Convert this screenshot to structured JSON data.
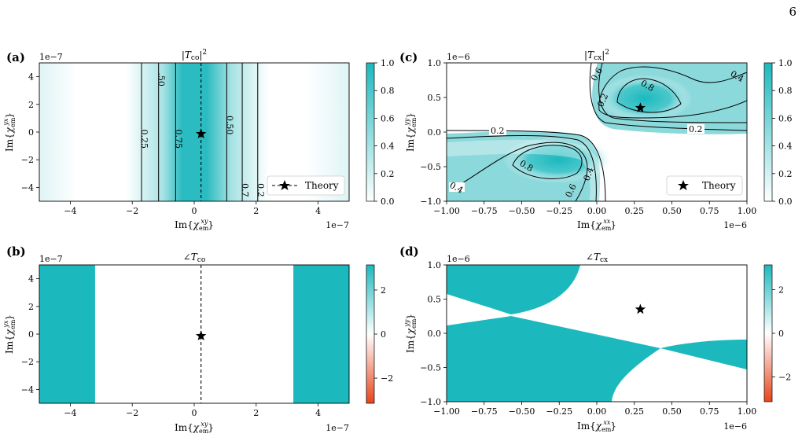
{
  "page_number": "6",
  "colors": {
    "teal": "#1bb9be",
    "white": "#ffffff",
    "red": "#e8441a"
  },
  "chart_data": [
    {
      "panel": "(a)",
      "type": "heatmap",
      "title": "|T_co|²",
      "xlabel": "Im{χ_em^xy}",
      "ylabel": "Im{χ_em^yx}",
      "x_offset": "1e−7",
      "y_offset": "1e−7",
      "xlim": [
        -5,
        5
      ],
      "ylim": [
        -5,
        5
      ],
      "x_ticks": [
        "−4",
        "−2",
        "0",
        "2",
        "4"
      ],
      "y_ticks": [
        "−4",
        "−2",
        "0",
        "2",
        "4"
      ],
      "x_tick_values": [
        -4,
        -2,
        0,
        2,
        4
      ],
      "y_tick_values": [
        -4,
        -2,
        0,
        2,
        4
      ],
      "contour_levels": [
        0.25,
        0.5,
        0.75
      ],
      "contour_x": [
        -1.7,
        -1.15,
        -0.6,
        1.05,
        1.55,
        2.05
      ],
      "contour_labels": [
        "0.25",
        ".50",
        "0.75",
        "0.50",
        "0.7",
        "0.2"
      ],
      "colorbar": {
        "range": [
          0,
          1
        ],
        "ticks": [
          "0.0",
          "0.2",
          "0.4",
          "0.6",
          "0.8",
          "1.0"
        ],
        "tick_values": [
          0,
          0.2,
          0.4,
          0.6,
          0.8,
          1.0
        ]
      },
      "theory_point": {
        "x": 0.22,
        "y": -0.13
      },
      "theory_line_x": 0.22,
      "legend": {
        "label": "Theory",
        "placement": "lower-right"
      }
    },
    {
      "panel": "(b)",
      "type": "heatmap",
      "title": "∠T_co",
      "xlabel": "Im{χ_em^xy}",
      "ylabel": "Im{χ_em^yx}",
      "x_offset": "1e−7",
      "y_offset": "1e−7",
      "xlim": [
        -5,
        5
      ],
      "ylim": [
        -5,
        5
      ],
      "x_ticks": [
        "−4",
        "−2",
        "0",
        "2",
        "4"
      ],
      "y_ticks": [
        "−4",
        "−2",
        "0",
        "2",
        "4"
      ],
      "x_tick_values": [
        -4,
        -2,
        0,
        2,
        4
      ],
      "y_tick_values": [
        -4,
        -2,
        0,
        2,
        4
      ],
      "teal_bands_x": [
        [
          -5,
          -3.2
        ],
        [
          3.2,
          5
        ]
      ],
      "colorbar": {
        "range": [
          -3.14,
          3.14
        ],
        "ticks": [
          "−2",
          "0",
          "2"
        ],
        "tick_values": [
          -2,
          0,
          2
        ]
      },
      "theory_point": {
        "x": 0.22,
        "y": -0.13
      },
      "theory_line_x": 0.22
    },
    {
      "panel": "(c)",
      "type": "heatmap",
      "title": "|T_cx|²",
      "xlabel": "Im{χ_em^xx}",
      "ylabel": "Im{χ_em^yy}",
      "x_offset": "1e−6",
      "y_offset": "1e−6",
      "xlim": [
        -1,
        1
      ],
      "ylim": [
        -1,
        1
      ],
      "x_ticks": [
        "−1.00",
        "−0.75",
        "−0.50",
        "−0.25",
        "0.00",
        "0.25",
        "0.50",
        "0.75",
        "1.00"
      ],
      "y_ticks": [
        "−1.0",
        "−0.5",
        "0.0",
        "0.5",
        "1.0"
      ],
      "x_tick_values": [
        -1,
        -0.75,
        -0.5,
        -0.25,
        0,
        0.25,
        0.5,
        0.75,
        1
      ],
      "y_tick_values": [
        -1,
        -0.5,
        0,
        0.5,
        1
      ],
      "contour_levels": [
        0.2,
        0.4,
        0.6,
        0.8
      ],
      "contour_labels": [
        "0.2",
        "0.4",
        "0.6",
        "0.8",
        "0.2",
        "0.4",
        "0.6",
        "0.8",
        "0.2",
        "0.4"
      ],
      "colorbar": {
        "range": [
          0,
          1
        ],
        "ticks": [
          "0.0",
          "0.2",
          "0.4",
          "0.6",
          "0.8",
          "1.0"
        ],
        "tick_values": [
          0,
          0.2,
          0.4,
          0.6,
          0.8,
          1.0
        ]
      },
      "theory_point": {
        "x": 0.29,
        "y": 0.35
      },
      "legend": {
        "label": "Theory",
        "placement": "lower-right"
      }
    },
    {
      "panel": "(d)",
      "type": "heatmap",
      "title": "∠T_cx",
      "xlabel": "Im{χ_em^xx}",
      "ylabel": "Im{χ_em^yy}",
      "x_offset": "1e−6",
      "y_offset": "1e−6",
      "xlim": [
        -1,
        1
      ],
      "ylim": [
        -1,
        1
      ],
      "x_ticks": [
        "−1.00",
        "−0.75",
        "−0.50",
        "−0.25",
        "0.00",
        "0.25",
        "0.50",
        "0.75",
        "1.00"
      ],
      "y_ticks": [
        "−1.0",
        "−0.5",
        "0.0",
        "0.5",
        "1.0"
      ],
      "x_tick_values": [
        -1,
        -0.75,
        -0.5,
        -0.25,
        0,
        0.25,
        0.5,
        0.75,
        1
      ],
      "y_tick_values": [
        -1,
        -0.5,
        0,
        0.5,
        1
      ],
      "colorbar": {
        "range": [
          -3.14,
          3.14
        ],
        "ticks": [
          "−2",
          "0",
          "2"
        ],
        "tick_values": [
          -2,
          0,
          2
        ]
      },
      "theory_point": {
        "x": 0.29,
        "y": 0.35
      }
    }
  ]
}
